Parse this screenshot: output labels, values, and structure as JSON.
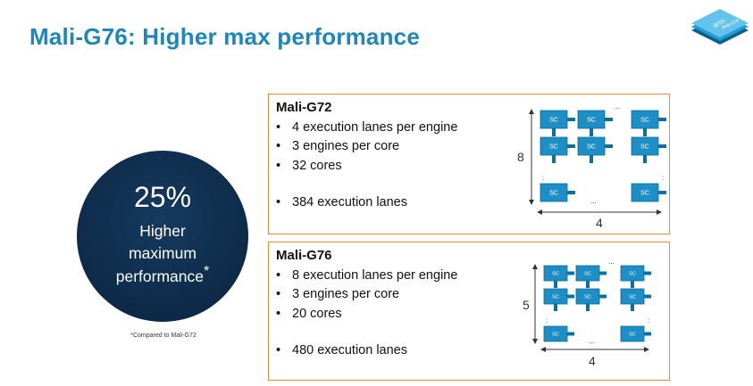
{
  "slide": {
    "title": "Mali-G76: Higher max performance",
    "logo_text": "arm",
    "logo_subtext": "Mali-G76"
  },
  "highlight": {
    "percent": "25%",
    "line1": "Higher",
    "line2": "maximum",
    "line3": "performance",
    "asterisk": "*",
    "footnote": "*Compared to Mali-G72"
  },
  "panels": [
    {
      "title": "Mali-G72",
      "bullets": [
        "4 execution lanes per engine",
        "3 engines per core",
        "32 cores"
      ],
      "total": "384 execution lanes",
      "rows_label": "8",
      "cols_label": "4",
      "core_label": "SC",
      "ellipsis": "..."
    },
    {
      "title": "Mali-G76",
      "bullets": [
        "8 execution lanes per engine",
        "3 engines per core",
        "20 cores"
      ],
      "total": "480 execution lanes",
      "rows_label": "5",
      "cols_label": "4",
      "core_label": "SC",
      "ellipsis": "..."
    }
  ],
  "colors": {
    "title": "#1e86b8",
    "circle": "#0f2c4b",
    "panel_border": "#e58a3c",
    "core_fill": "#1e8fc6"
  }
}
